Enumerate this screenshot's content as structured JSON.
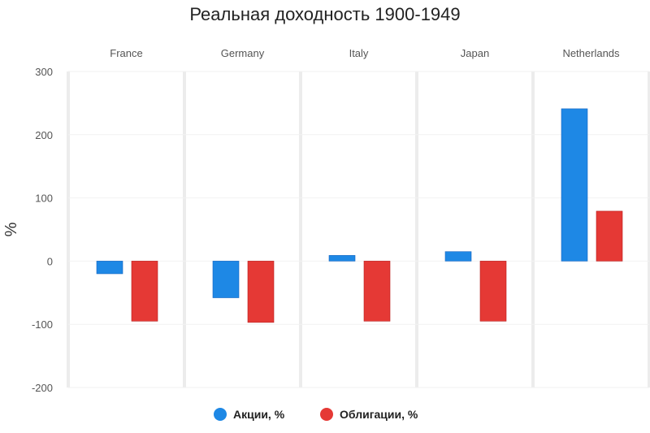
{
  "chart_data": {
    "type": "bar",
    "title": "Реальная доходность 1900-1949",
    "ylabel": "%",
    "xlabel": "",
    "ylim": [
      -200,
      300
    ],
    "yticks": [
      300,
      200,
      100,
      0,
      -100,
      -200
    ],
    "facets": [
      "France",
      "Germany",
      "Italy",
      "Japan",
      "Netherlands"
    ],
    "series": [
      {
        "name": "Акции, %",
        "color": "#1E88E5",
        "values": [
          -20,
          -58,
          9,
          15,
          241
        ]
      },
      {
        "name": "Облигации, %",
        "color": "#E53935",
        "values": [
          -95,
          -97,
          -95,
          -95,
          79
        ]
      }
    ],
    "legend": "bottom",
    "grid": true
  }
}
